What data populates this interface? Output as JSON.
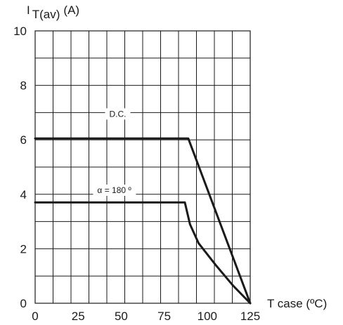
{
  "chart_data": {
    "type": "line",
    "y_axis_label": "I",
    "y_axis_label_subscript": "T(av)",
    "y_axis_label_unit": "(A)",
    "x_axis_label": "T case (ºC)",
    "xlim": [
      0,
      125
    ],
    "ylim": [
      0,
      10
    ],
    "x_ticks": [
      0,
      25,
      50,
      75,
      100,
      125
    ],
    "y_ticks": [
      0,
      2,
      4,
      6,
      8,
      10
    ],
    "grid": true,
    "series": [
      {
        "name": "D.C.",
        "points": [
          [
            0,
            6.05
          ],
          [
            89,
            6.05
          ],
          [
            125,
            0
          ]
        ]
      },
      {
        "name": "α = 180 º",
        "points": [
          [
            0,
            3.7
          ],
          [
            87,
            3.7
          ],
          [
            90,
            2.9
          ],
          [
            95,
            2.2
          ],
          [
            105,
            1.4
          ],
          [
            115,
            0.65
          ],
          [
            125,
            0
          ]
        ]
      }
    ],
    "annotations": [
      {
        "text": "D.C.",
        "x": 48,
        "y": 6.95
      },
      {
        "text": "α = 180 º",
        "x": 46,
        "y": 4.15
      }
    ]
  }
}
